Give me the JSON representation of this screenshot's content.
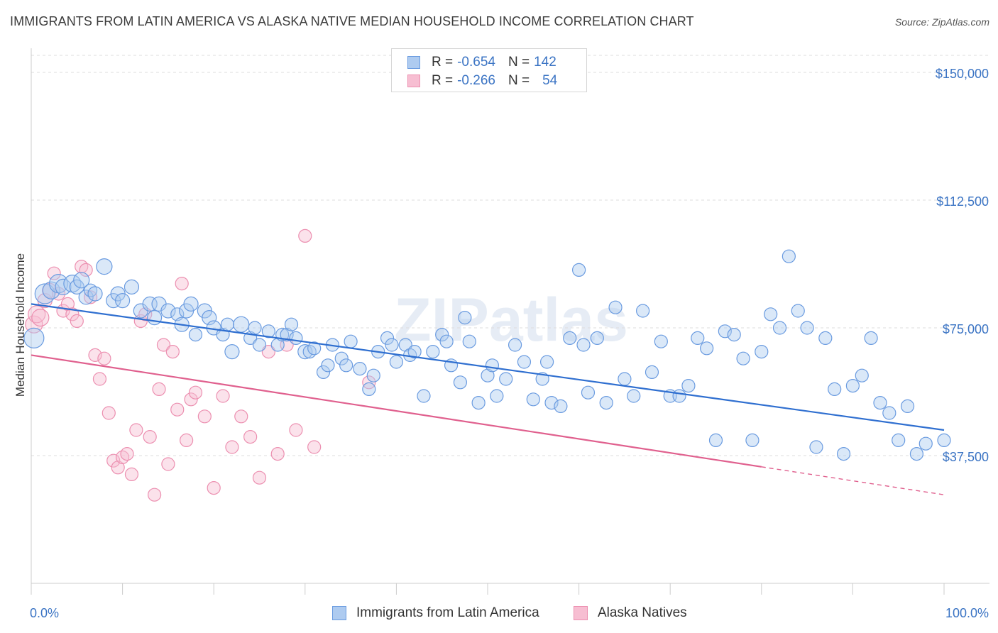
{
  "title": "IMMIGRANTS FROM LATIN AMERICA VS ALASKA NATIVE MEDIAN HOUSEHOLD INCOME CORRELATION CHART",
  "source": "Source: ZipAtlas.com",
  "watermark": "ZIPatlas",
  "colors": {
    "blue_fill": "#aecbf0",
    "blue_stroke": "#6a9be0",
    "blue_line": "#2f6fd0",
    "pink_fill": "#f7bed2",
    "pink_stroke": "#ec8fb0",
    "pink_line": "#e0608e",
    "tick_text": "#3b74c4",
    "grid": "#dddddd"
  },
  "legend": {
    "rows": [
      {
        "r_label": "R =",
        "r_value": "-0.654",
        "n_label": "N =",
        "n_value": "142"
      },
      {
        "r_label": "R =",
        "r_value": "-0.266",
        "n_label": "N =",
        "n_value": "54"
      }
    ]
  },
  "bottom_legend": [
    "Immigrants from Latin America",
    "Alaska Natives"
  ],
  "chart_data": {
    "type": "scatter",
    "title": "IMMIGRANTS FROM LATIN AMERICA VS ALASKA NATIVE MEDIAN HOUSEHOLD INCOME CORRELATION CHART",
    "xlabel": "",
    "ylabel": "Median Household Income",
    "xlim": [
      0,
      100
    ],
    "ylim": [
      0,
      155000
    ],
    "x_tick_labels": [
      "0.0%",
      "100.0%"
    ],
    "y_ticks": [
      37500,
      75000,
      112500,
      150000
    ],
    "y_tick_labels": [
      "$37,500",
      "$75,000",
      "$112,500",
      "$150,000"
    ],
    "grid": true,
    "legend_position": "top-center",
    "series": [
      {
        "name": "Immigrants from Latin America",
        "r": -0.654,
        "n": 142,
        "trend": {
          "x": [
            0,
            100
          ],
          "y": [
            82000,
            45000
          ],
          "dashed_from": null
        },
        "points": [
          [
            0.3,
            72000,
            14
          ],
          [
            1.5,
            85000,
            14
          ],
          [
            2.2,
            86000,
            12
          ],
          [
            3,
            88000,
            13
          ],
          [
            3.5,
            87000,
            11
          ],
          [
            4.5,
            88000,
            12
          ],
          [
            5,
            87000,
            10
          ],
          [
            5.5,
            89000,
            11
          ],
          [
            6,
            84000,
            10
          ],
          [
            6.5,
            86000,
            9
          ],
          [
            7,
            85000,
            10
          ],
          [
            8,
            93000,
            11
          ],
          [
            9,
            83000,
            10
          ],
          [
            9.5,
            85000,
            10
          ],
          [
            10,
            83000,
            10
          ],
          [
            11,
            87000,
            10
          ],
          [
            12,
            80000,
            10
          ],
          [
            13,
            82000,
            10
          ],
          [
            13.5,
            78000,
            10
          ],
          [
            14,
            82000,
            10
          ],
          [
            15,
            80000,
            10
          ],
          [
            16,
            79000,
            9
          ],
          [
            16.5,
            76000,
            10
          ],
          [
            17,
            80000,
            10
          ],
          [
            17.5,
            82000,
            10
          ],
          [
            18,
            73000,
            9
          ],
          [
            19,
            80000,
            10
          ],
          [
            19.5,
            78000,
            10
          ],
          [
            20,
            75000,
            10
          ],
          [
            21,
            73000,
            9
          ],
          [
            21.5,
            76000,
            9
          ],
          [
            22,
            68000,
            10
          ],
          [
            23,
            76000,
            11
          ],
          [
            24,
            72000,
            9
          ],
          [
            24.5,
            75000,
            9
          ],
          [
            25,
            70000,
            9
          ],
          [
            26,
            74000,
            9
          ],
          [
            27,
            70000,
            9
          ],
          [
            27.5,
            73000,
            9
          ],
          [
            28,
            73000,
            9
          ],
          [
            28.5,
            76000,
            9
          ],
          [
            29,
            72000,
            9
          ],
          [
            30,
            68000,
            10
          ],
          [
            30.5,
            68000,
            9
          ],
          [
            31,
            69000,
            9
          ],
          [
            32,
            62000,
            9
          ],
          [
            32.5,
            64000,
            9
          ],
          [
            33,
            70000,
            9
          ],
          [
            34,
            66000,
            9
          ],
          [
            34.5,
            64000,
            9
          ],
          [
            35,
            71000,
            9
          ],
          [
            36,
            63000,
            9
          ],
          [
            37,
            57000,
            9
          ],
          [
            37.5,
            61000,
            9
          ],
          [
            38,
            68000,
            9
          ],
          [
            39,
            72000,
            9
          ],
          [
            39.5,
            70000,
            9
          ],
          [
            40,
            65000,
            9
          ],
          [
            41,
            70000,
            9
          ],
          [
            41.5,
            67000,
            9
          ],
          [
            42,
            68000,
            9
          ],
          [
            43,
            55000,
            9
          ],
          [
            44,
            68000,
            9
          ],
          [
            45,
            73000,
            9
          ],
          [
            45.5,
            71000,
            9
          ],
          [
            46,
            64000,
            9
          ],
          [
            47,
            59000,
            9
          ],
          [
            47.5,
            78000,
            9
          ],
          [
            48,
            71000,
            9
          ],
          [
            49,
            53000,
            9
          ],
          [
            50,
            61000,
            9
          ],
          [
            50.5,
            64000,
            9
          ],
          [
            51,
            55000,
            9
          ],
          [
            52,
            60000,
            9
          ],
          [
            53,
            70000,
            9
          ],
          [
            54,
            65000,
            9
          ],
          [
            55,
            54000,
            9
          ],
          [
            56,
            60000,
            9
          ],
          [
            56.5,
            65000,
            9
          ],
          [
            57,
            53000,
            9
          ],
          [
            58,
            52000,
            9
          ],
          [
            59,
            72000,
            9
          ],
          [
            60,
            92000,
            9
          ],
          [
            60.5,
            70000,
            9
          ],
          [
            61,
            56000,
            9
          ],
          [
            62,
            72000,
            9
          ],
          [
            63,
            53000,
            9
          ],
          [
            64,
            81000,
            9
          ],
          [
            65,
            60000,
            9
          ],
          [
            66,
            55000,
            9
          ],
          [
            67,
            80000,
            9
          ],
          [
            68,
            62000,
            9
          ],
          [
            69,
            71000,
            9
          ],
          [
            70,
            55000,
            9
          ],
          [
            71,
            55000,
            9
          ],
          [
            72,
            58000,
            9
          ],
          [
            73,
            72000,
            9
          ],
          [
            74,
            69000,
            9
          ],
          [
            75,
            42000,
            9
          ],
          [
            76,
            74000,
            9
          ],
          [
            77,
            73000,
            9
          ],
          [
            78,
            66000,
            9
          ],
          [
            79,
            42000,
            9
          ],
          [
            80,
            68000,
            9
          ],
          [
            81,
            79000,
            9
          ],
          [
            82,
            75000,
            9
          ],
          [
            83,
            96000,
            9
          ],
          [
            84,
            80000,
            9
          ],
          [
            85,
            75000,
            9
          ],
          [
            86,
            40000,
            9
          ],
          [
            87,
            72000,
            9
          ],
          [
            88,
            57000,
            9
          ],
          [
            89,
            38000,
            9
          ],
          [
            90,
            58000,
            9
          ],
          [
            91,
            61000,
            9
          ],
          [
            92,
            72000,
            9
          ],
          [
            93,
            53000,
            9
          ],
          [
            94,
            50000,
            9
          ],
          [
            95,
            42000,
            9
          ],
          [
            96,
            52000,
            9
          ],
          [
            97,
            38000,
            9
          ],
          [
            98,
            41000,
            9
          ],
          [
            100,
            42000,
            9
          ]
        ]
      },
      {
        "name": "Alaska Natives",
        "r": -0.266,
        "n": 54,
        "trend": {
          "x": [
            0,
            100
          ],
          "y": [
            67000,
            26000
          ],
          "dashed_from": 80
        },
        "points": [
          [
            0.3,
            76000,
            12
          ],
          [
            0.6,
            79000,
            12
          ],
          [
            1,
            78000,
            12
          ],
          [
            1.5,
            83000,
            10
          ],
          [
            2,
            86000,
            10
          ],
          [
            2.5,
            91000,
            9
          ],
          [
            3,
            85000,
            9
          ],
          [
            3.5,
            80000,
            9
          ],
          [
            4,
            82000,
            9
          ],
          [
            4.5,
            79000,
            9
          ],
          [
            5,
            77000,
            9
          ],
          [
            5.5,
            93000,
            9
          ],
          [
            6,
            92000,
            9
          ],
          [
            6.5,
            84000,
            9
          ],
          [
            7,
            67000,
            9
          ],
          [
            7.5,
            60000,
            9
          ],
          [
            8,
            66000,
            9
          ],
          [
            8.5,
            50000,
            9
          ],
          [
            9,
            36000,
            9
          ],
          [
            9.5,
            34000,
            9
          ],
          [
            10,
            37000,
            9
          ],
          [
            10.5,
            38000,
            9
          ],
          [
            11,
            32000,
            9
          ],
          [
            11.5,
            45000,
            9
          ],
          [
            12,
            77000,
            9
          ],
          [
            12.5,
            79000,
            9
          ],
          [
            13,
            43000,
            9
          ],
          [
            13.5,
            26000,
            9
          ],
          [
            14,
            57000,
            9
          ],
          [
            14.5,
            70000,
            9
          ],
          [
            15,
            35000,
            9
          ],
          [
            15.5,
            68000,
            9
          ],
          [
            16,
            51000,
            9
          ],
          [
            16.5,
            88000,
            9
          ],
          [
            17,
            42000,
            9
          ],
          [
            17.5,
            54000,
            9
          ],
          [
            18,
            56000,
            9
          ],
          [
            19,
            49000,
            9
          ],
          [
            20,
            28000,
            9
          ],
          [
            21,
            55000,
            9
          ],
          [
            22,
            40000,
            9
          ],
          [
            23,
            49000,
            9
          ],
          [
            24,
            43000,
            9
          ],
          [
            25,
            31000,
            9
          ],
          [
            26,
            68000,
            9
          ],
          [
            27,
            38000,
            9
          ],
          [
            28,
            70000,
            9
          ],
          [
            29,
            45000,
            9
          ],
          [
            30,
            102000,
            9
          ],
          [
            31,
            40000,
            9
          ],
          [
            37,
            59000,
            9
          ]
        ]
      }
    ]
  }
}
